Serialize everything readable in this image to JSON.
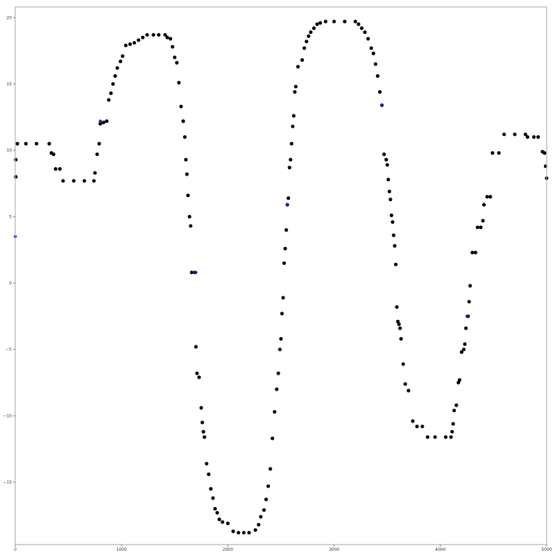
{
  "chart_data": {
    "type": "scatter",
    "title": "",
    "xlabel": "",
    "ylabel": "",
    "xlim": [
      0,
      5000
    ],
    "ylim": [
      -19.7,
      20.8
    ],
    "x_ticks": [
      0,
      1000,
      2000,
      3000,
      4000,
      5000
    ],
    "y_ticks": [
      -15,
      -10,
      -5,
      0,
      5,
      10,
      15,
      20
    ],
    "x_tick_labels": [
      "0",
      "1000",
      "2000",
      "3000",
      "4000",
      "5000"
    ],
    "y_tick_labels": [
      "−15",
      "−10",
      "−5",
      "0",
      "5",
      "10",
      "15",
      "20"
    ],
    "grid": false,
    "series": [
      {
        "color": "#000000",
        "points": [
          [
            5,
            9.3
          ],
          [
            5,
            8.0
          ],
          [
            20,
            10.5
          ],
          [
            100,
            10.5
          ],
          [
            200,
            10.5
          ],
          [
            320,
            10.5
          ],
          [
            340,
            9.8
          ],
          [
            360,
            9.7
          ],
          [
            380,
            8.6
          ],
          [
            420,
            8.6
          ],
          [
            450,
            7.7
          ],
          [
            550,
            7.7
          ],
          [
            650,
            7.7
          ],
          [
            740,
            7.7
          ],
          [
            750,
            8.3
          ],
          [
            770,
            9.7
          ],
          [
            790,
            10.5
          ],
          [
            800,
            12.0
          ],
          [
            830,
            12.1
          ],
          [
            860,
            12.2
          ],
          [
            880,
            13.8
          ],
          [
            900,
            14.3
          ],
          [
            920,
            15.0
          ],
          [
            940,
            15.6
          ],
          [
            960,
            16.2
          ],
          [
            990,
            16.7
          ],
          [
            1010,
            17.1
          ],
          [
            1040,
            17.9
          ],
          [
            1080,
            18.0
          ],
          [
            1120,
            18.1
          ],
          [
            1160,
            18.3
          ],
          [
            1200,
            18.5
          ],
          [
            1240,
            18.7
          ],
          [
            1300,
            18.7
          ],
          [
            1350,
            18.7
          ],
          [
            1410,
            18.7
          ],
          [
            1430,
            18.5
          ],
          [
            1460,
            18.4
          ],
          [
            1480,
            17.8
          ],
          [
            1500,
            17.0
          ],
          [
            1520,
            16.6
          ],
          [
            1540,
            15.1
          ],
          [
            1560,
            13.3
          ],
          [
            1580,
            12.2
          ],
          [
            1595,
            11.0
          ],
          [
            1605,
            9.3
          ],
          [
            1615,
            8.2
          ],
          [
            1625,
            6.6
          ],
          [
            1640,
            5.0
          ],
          [
            1650,
            4.3
          ],
          [
            1660,
            0.8
          ],
          [
            1690,
            0.8
          ],
          [
            1700,
            -4.8
          ],
          [
            1710,
            -6.8
          ],
          [
            1730,
            -7.1
          ],
          [
            1750,
            -9.4
          ],
          [
            1760,
            -10.5
          ],
          [
            1770,
            -11.2
          ],
          [
            1780,
            -11.6
          ],
          [
            1800,
            -13.6
          ],
          [
            1820,
            -14.4
          ],
          [
            1840,
            -15.5
          ],
          [
            1860,
            -16.2
          ],
          [
            1880,
            -17.0
          ],
          [
            1900,
            -17.3
          ],
          [
            1920,
            -17.8
          ],
          [
            1950,
            -18.0
          ],
          [
            2000,
            -18.1
          ],
          [
            2050,
            -18.7
          ],
          [
            2100,
            -18.8
          ],
          [
            2150,
            -18.8
          ],
          [
            2200,
            -18.8
          ],
          [
            2260,
            -18.6
          ],
          [
            2290,
            -18.2
          ],
          [
            2310,
            -17.6
          ],
          [
            2340,
            -17.1
          ],
          [
            2360,
            -16.3
          ],
          [
            2380,
            -15.3
          ],
          [
            2400,
            -14.0
          ],
          [
            2420,
            -11.7
          ],
          [
            2440,
            -9.7
          ],
          [
            2460,
            -8.0
          ],
          [
            2475,
            -6.8
          ],
          [
            2490,
            -5.0
          ],
          [
            2500,
            -4.2
          ],
          [
            2510,
            -2.3
          ],
          [
            2520,
            -1.1
          ],
          [
            2530,
            1.5
          ],
          [
            2540,
            2.6
          ],
          [
            2550,
            4.0
          ],
          [
            2560,
            5.9
          ],
          [
            2570,
            6.4
          ],
          [
            2580,
            8.7
          ],
          [
            2590,
            9.3
          ],
          [
            2600,
            10.5
          ],
          [
            2610,
            11.8
          ],
          [
            2620,
            12.6
          ],
          [
            2630,
            14.4
          ],
          [
            2640,
            14.8
          ],
          [
            2660,
            16.3
          ],
          [
            2700,
            16.8
          ],
          [
            2720,
            17.7
          ],
          [
            2740,
            18.2
          ],
          [
            2760,
            18.6
          ],
          [
            2780,
            18.9
          ],
          [
            2810,
            19.2
          ],
          [
            2840,
            19.5
          ],
          [
            2870,
            19.6
          ],
          [
            2920,
            19.7
          ],
          [
            3000,
            19.7
          ],
          [
            3100,
            19.7
          ],
          [
            3200,
            19.7
          ],
          [
            3230,
            19.5
          ],
          [
            3260,
            19.2
          ],
          [
            3290,
            18.9
          ],
          [
            3320,
            18.4
          ],
          [
            3350,
            17.7
          ],
          [
            3370,
            17.3
          ],
          [
            3390,
            16.5
          ],
          [
            3410,
            15.6
          ],
          [
            3430,
            14.4
          ],
          [
            3450,
            13.4
          ],
          [
            3470,
            9.7
          ],
          [
            3490,
            9.3
          ],
          [
            3500,
            8.9
          ],
          [
            3510,
            7.8
          ],
          [
            3520,
            6.9
          ],
          [
            3530,
            6.3
          ],
          [
            3540,
            5.1
          ],
          [
            3550,
            4.6
          ],
          [
            3560,
            3.6
          ],
          [
            3570,
            2.8
          ],
          [
            3580,
            1.4
          ],
          [
            3590,
            -1.8
          ],
          [
            3600,
            -2.9
          ],
          [
            3610,
            -3.1
          ],
          [
            3620,
            -3.4
          ],
          [
            3630,
            -4.2
          ],
          [
            3650,
            -6.1
          ],
          [
            3670,
            -7.6
          ],
          [
            3700,
            -8.1
          ],
          [
            3740,
            -10.4
          ],
          [
            3780,
            -10.8
          ],
          [
            3830,
            -10.8
          ],
          [
            3880,
            -11.6
          ],
          [
            3950,
            -11.6
          ],
          [
            4050,
            -11.6
          ],
          [
            4100,
            -11.6
          ],
          [
            4110,
            -11.2
          ],
          [
            4120,
            -10.6
          ],
          [
            4130,
            -9.6
          ],
          [
            4150,
            -9.2
          ],
          [
            4170,
            -7.5
          ],
          [
            4180,
            -7.3
          ],
          [
            4200,
            -5.2
          ],
          [
            4220,
            -5.0
          ],
          [
            4230,
            -4.6
          ],
          [
            4240,
            -3.4
          ],
          [
            4260,
            -2.5
          ],
          [
            4270,
            -1.4
          ],
          [
            4280,
            -0.2
          ],
          [
            4300,
            2.3
          ],
          [
            4330,
            2.3
          ],
          [
            4350,
            4.2
          ],
          [
            4380,
            4.2
          ],
          [
            4400,
            4.7
          ],
          [
            4410,
            5.9
          ],
          [
            4440,
            6.5
          ],
          [
            4470,
            6.5
          ],
          [
            4490,
            9.8
          ],
          [
            4550,
            9.8
          ],
          [
            4600,
            11.2
          ],
          [
            4700,
            11.2
          ],
          [
            4800,
            11.2
          ],
          [
            4820,
            11.0
          ],
          [
            4880,
            11.0
          ],
          [
            4920,
            11.0
          ],
          [
            4960,
            9.9
          ],
          [
            4980,
            9.8
          ],
          [
            4990,
            8.8
          ],
          [
            5000,
            7.9
          ]
        ]
      },
      {
        "color": "#1a1acc",
        "points": [
          [
            0,
            3.5
          ],
          [
            800,
            12.2
          ],
          [
            1700,
            0.8
          ],
          [
            2560,
            5.9
          ],
          [
            3450,
            13.4
          ],
          [
            4250,
            -2.5
          ]
        ]
      }
    ]
  }
}
